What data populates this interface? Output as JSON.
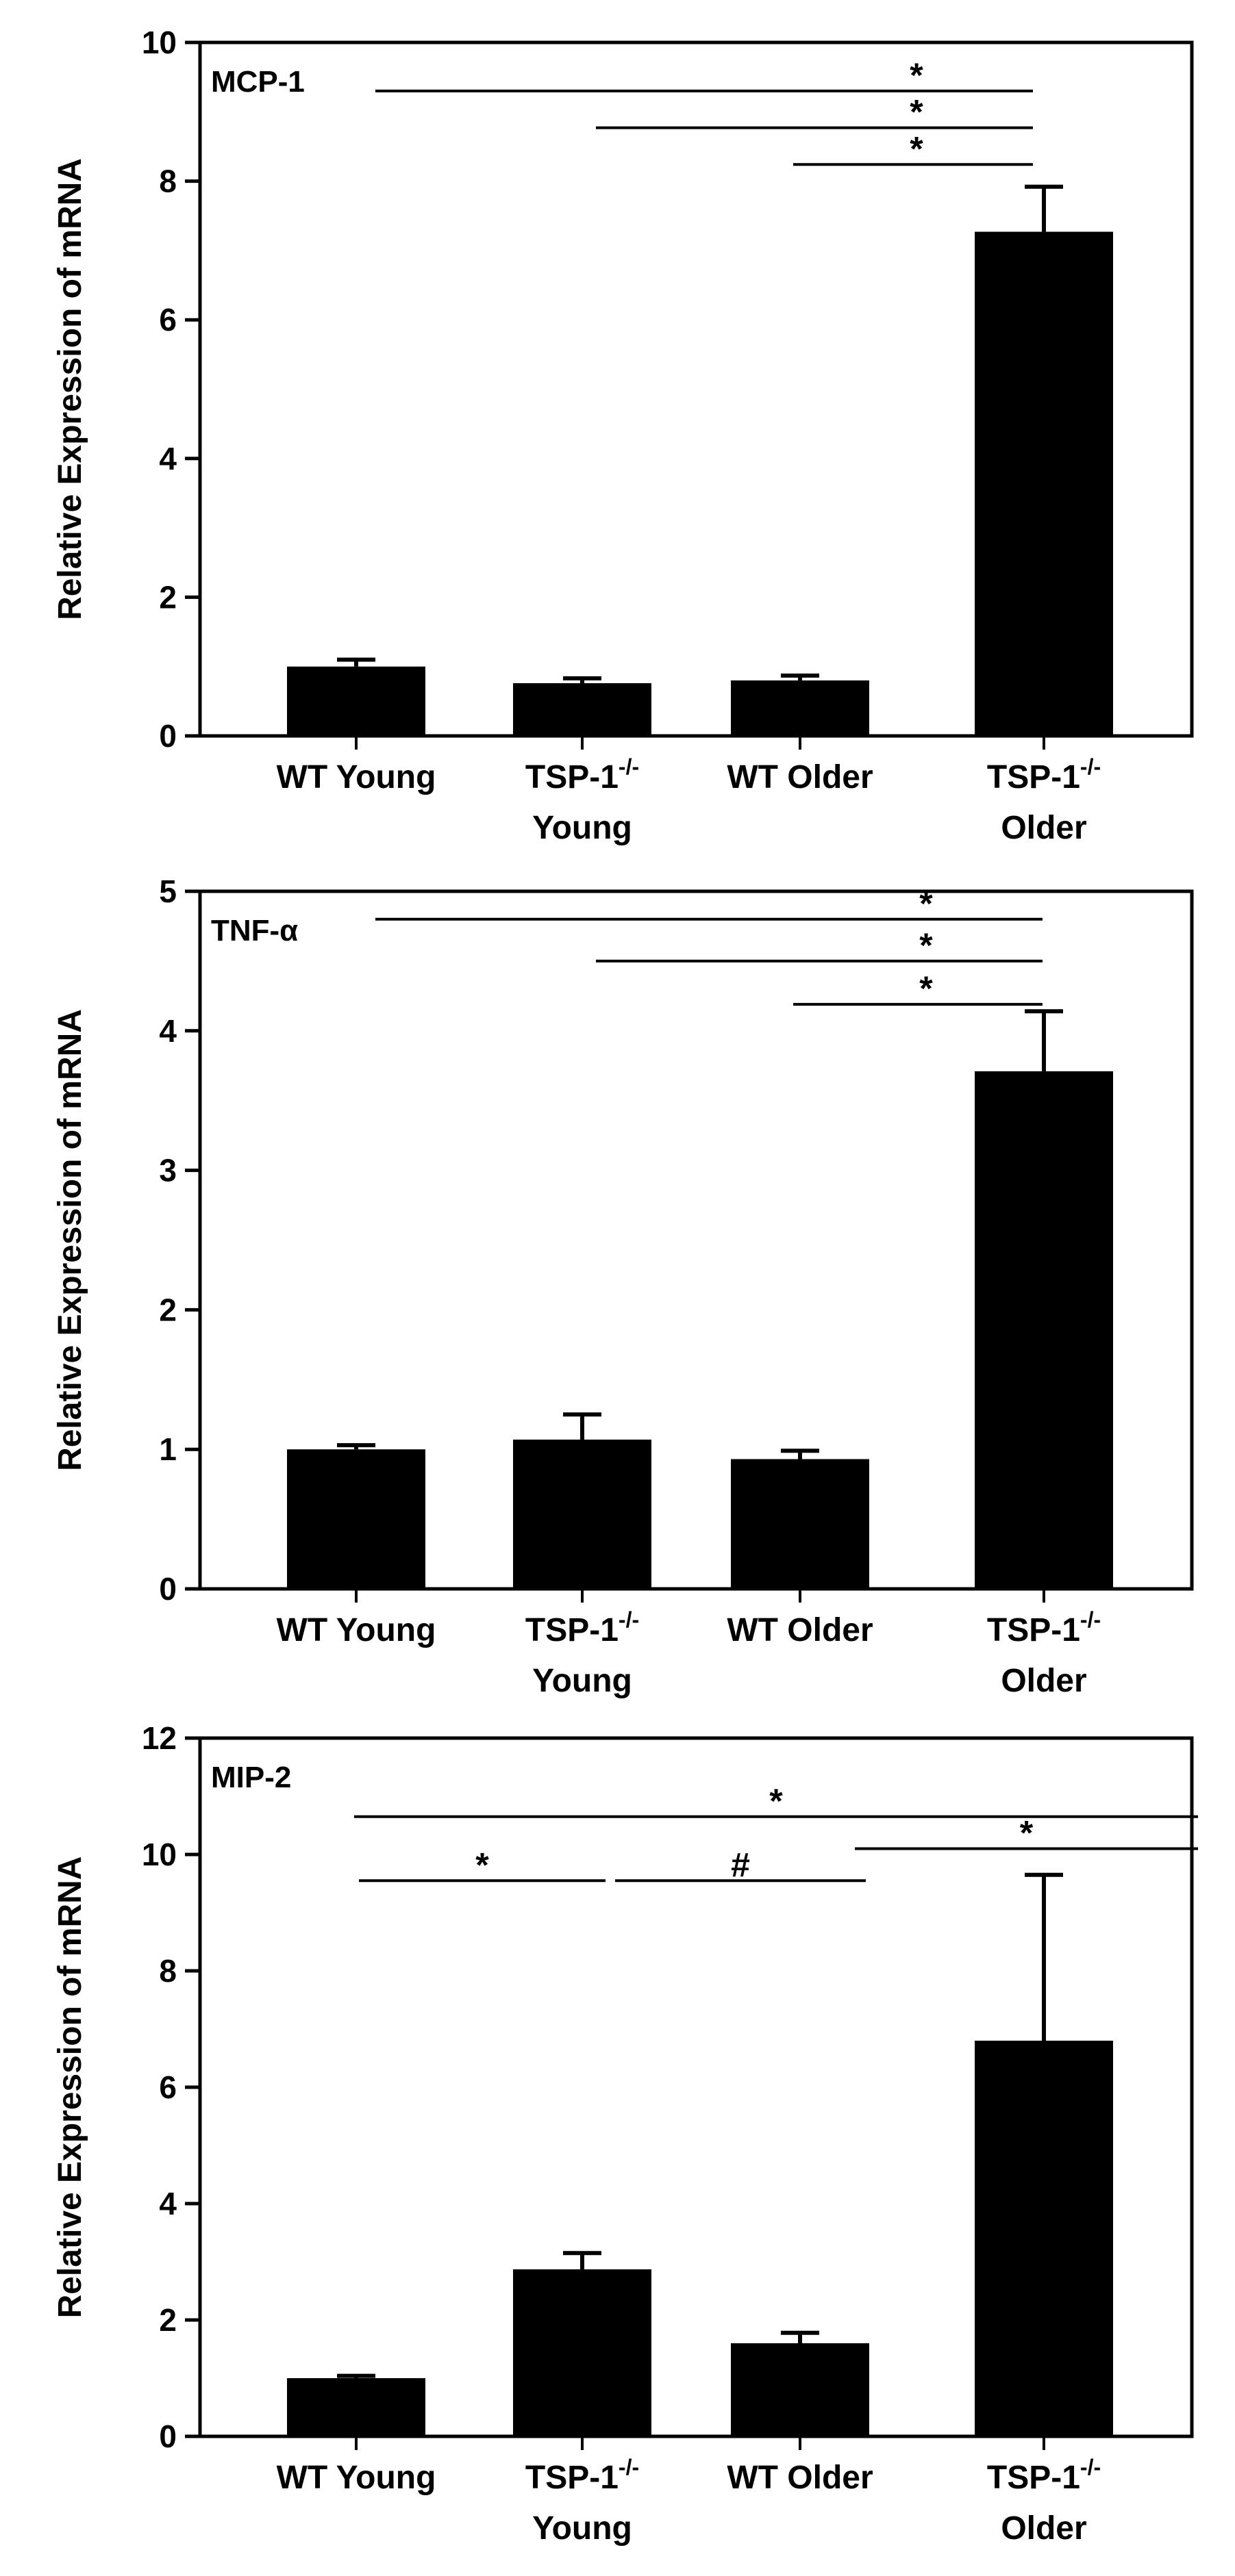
{
  "colors": {
    "bar": "#000000",
    "axis": "#000000",
    "background": "#ffffff"
  },
  "chart_data": [
    {
      "type": "bar",
      "title": "",
      "panel_label": "MCP-1",
      "xlabel": "",
      "ylabel": "Relative Expression of mRNA",
      "categories": [
        {
          "main": "WT Young",
          "sup": "",
          "sub": ""
        },
        {
          "main": "TSP-1",
          "sup": "-/-",
          "sub": "Young"
        },
        {
          "main": "WT Older",
          "sup": "",
          "sub": ""
        },
        {
          "main": "TSP-1",
          "sup": "-/-",
          "sub": "Older"
        }
      ],
      "values": [
        1.0,
        0.76,
        0.8,
        7.27
      ],
      "errors": [
        0.1,
        0.07,
        0.07,
        0.65
      ],
      "ylim": [
        0,
        10
      ],
      "yticks": [
        0,
        2,
        4,
        6,
        8,
        10
      ],
      "grid": false,
      "annotations": [
        {
          "from": 0,
          "to": 3,
          "y": 9.3,
          "mark": "*"
        },
        {
          "from": 1,
          "to": 3,
          "y": 8.77,
          "mark": "*"
        },
        {
          "from": 2,
          "to": 3,
          "y": 8.24,
          "mark": "*"
        }
      ]
    },
    {
      "type": "bar",
      "title": "",
      "panel_label": "TNF-α",
      "xlabel": "",
      "ylabel": "Relative Expression of mRNA",
      "categories": [
        {
          "main": "WT Young",
          "sup": "",
          "sub": ""
        },
        {
          "main": "TSP-1",
          "sup": "-/-",
          "sub": "Young"
        },
        {
          "main": "WT Older",
          "sup": "",
          "sub": ""
        },
        {
          "main": "TSP-1",
          "sup": "-/-",
          "sub": "Older"
        }
      ],
      "values": [
        1.0,
        1.07,
        0.93,
        3.71
      ],
      "errors": [
        0.03,
        0.18,
        0.06,
        0.43
      ],
      "ylim": [
        0,
        5
      ],
      "yticks": [
        0,
        1,
        2,
        3,
        4,
        5
      ],
      "grid": false,
      "annotations": [
        {
          "from": 0,
          "to": 3,
          "y": 4.8,
          "mark": "*"
        },
        {
          "from": 1,
          "to": 3,
          "y": 4.5,
          "mark": "*"
        },
        {
          "from": 2,
          "to": 3,
          "y": 4.19,
          "mark": "*"
        }
      ]
    },
    {
      "type": "bar",
      "title": "",
      "panel_label": "MIP-2",
      "xlabel": "",
      "ylabel": "Relative Expression of mRNA",
      "categories": [
        {
          "main": "WT Young",
          "sup": "",
          "sub": ""
        },
        {
          "main": "TSP-1",
          "sup": "-/-",
          "sub": "Young"
        },
        {
          "main": "WT Older",
          "sup": "",
          "sub": ""
        },
        {
          "main": "TSP-1",
          "sup": "-/-",
          "sub": "Older"
        }
      ],
      "values": [
        1.0,
        2.87,
        1.6,
        6.8
      ],
      "errors": [
        0.04,
        0.28,
        0.18,
        2.85
      ],
      "ylim": [
        0,
        12
      ],
      "yticks": [
        0,
        2,
        4,
        6,
        8,
        10,
        12
      ],
      "grid": false,
      "annotations": [
        {
          "from": 0,
          "to": 3,
          "y": 10.65,
          "mark": "*"
        },
        {
          "from": 0,
          "to": 1,
          "y": 9.55,
          "mark": "*"
        },
        {
          "from": 1,
          "to": 2,
          "y": 9.55,
          "mark": "#"
        },
        {
          "from": 2,
          "to": 3,
          "y": 10.1,
          "mark": "*"
        }
      ]
    }
  ]
}
